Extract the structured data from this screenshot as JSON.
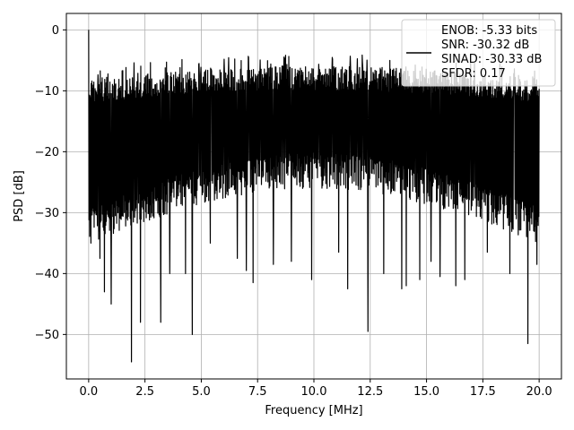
{
  "chart_data": {
    "type": "line",
    "title": "",
    "xlabel": "Frequency [MHz]",
    "ylabel": "PSD [dB]",
    "xlim": [
      -0.99,
      20.99
    ],
    "ylim": [
      -57.3,
      2.7
    ],
    "xticks": [
      0.0,
      2.5,
      5.0,
      7.5,
      10.0,
      12.5,
      15.0,
      17.5,
      20.0
    ],
    "xtick_labels": [
      "0.0",
      "2.5",
      "5.0",
      "7.5",
      "10.0",
      "12.5",
      "15.0",
      "17.5",
      "20.0"
    ],
    "yticks": [
      0,
      -10,
      -20,
      -30,
      -40,
      -50
    ],
    "ytick_labels": [
      "0",
      "−10",
      "−20",
      "−30",
      "−40",
      "−50"
    ],
    "grid": true,
    "legend_position": "top-right",
    "series": [
      {
        "color": "#000000",
        "description": "Dense noise-like PSD spanning 0–20 MHz, mostly between about -35 dB and -5 dB, with a peak at 0 dB near 0 MHz and occasional dips down to about -55 dB",
        "x_range": [
          0,
          20
        ],
        "peak": {
          "x": 0.0,
          "y": 0.0
        },
        "upper_envelope_db": [
          -8,
          -6
        ],
        "lower_envelope_db": [
          -35,
          -26
        ],
        "dips": [
          {
            "x": 0.1,
            "y": -35
          },
          {
            "x": 0.5,
            "y": -37.5
          },
          {
            "x": 0.7,
            "y": -43
          },
          {
            "x": 1.0,
            "y": -45
          },
          {
            "x": 1.9,
            "y": -54.5
          },
          {
            "x": 2.3,
            "y": -48
          },
          {
            "x": 3.2,
            "y": -48
          },
          {
            "x": 3.6,
            "y": -40
          },
          {
            "x": 4.3,
            "y": -40
          },
          {
            "x": 4.6,
            "y": -50
          },
          {
            "x": 5.4,
            "y": -35
          },
          {
            "x": 6.6,
            "y": -37.5
          },
          {
            "x": 7.0,
            "y": -39.5
          },
          {
            "x": 7.3,
            "y": -41.5
          },
          {
            "x": 8.2,
            "y": -38.5
          },
          {
            "x": 9.0,
            "y": -38
          },
          {
            "x": 9.9,
            "y": -41
          },
          {
            "x": 11.1,
            "y": -36.5
          },
          {
            "x": 11.5,
            "y": -42.5
          },
          {
            "x": 12.4,
            "y": -49.5
          },
          {
            "x": 13.1,
            "y": -40
          },
          {
            "x": 13.9,
            "y": -42.5
          },
          {
            "x": 14.1,
            "y": -42
          },
          {
            "x": 14.7,
            "y": -41
          },
          {
            "x": 15.2,
            "y": -38
          },
          {
            "x": 15.6,
            "y": -40.5
          },
          {
            "x": 16.3,
            "y": -42
          },
          {
            "x": 16.7,
            "y": -41
          },
          {
            "x": 17.7,
            "y": -36.5
          },
          {
            "x": 18.7,
            "y": -40
          },
          {
            "x": 19.5,
            "y": -51.5
          },
          {
            "x": 19.9,
            "y": -38.5
          }
        ]
      }
    ],
    "legend": {
      "lines": [
        "ENOB: -5.33 bits",
        "SNR: -30.32 dB",
        "SINAD: -30.33 dB",
        "SFDR: 0.17"
      ]
    }
  }
}
